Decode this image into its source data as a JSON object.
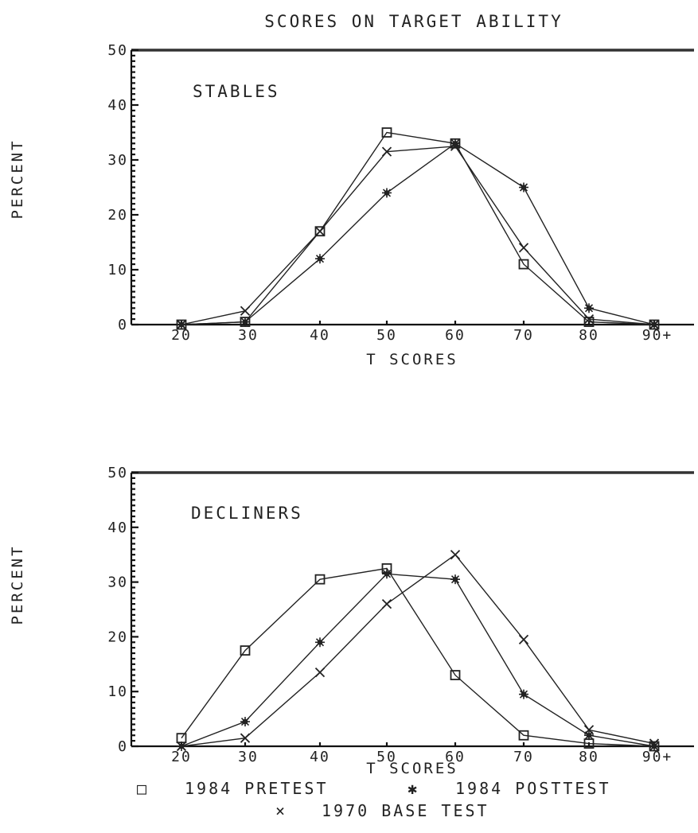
{
  "chart_data": [
    {
      "type": "line",
      "title": "SCORES ON TARGET ABILITY",
      "panel_label": "STABLES",
      "xlabel": "T SCORES",
      "ylabel": "PERCENT",
      "categories": [
        "20",
        "30",
        "40",
        "50",
        "60",
        "70",
        "80",
        "90+"
      ],
      "ylim": [
        0,
        50
      ],
      "yticks": [
        "0",
        "10",
        "20",
        "30",
        "40",
        "50"
      ],
      "series": [
        {
          "name": "1984 PRETEST",
          "marker": "square",
          "values": [
            0,
            0.5,
            17,
            35,
            33,
            11,
            0.5,
            0
          ]
        },
        {
          "name": "1984 POSTTEST",
          "marker": "star",
          "values": [
            0,
            0.5,
            12,
            24,
            33,
            25,
            3,
            0
          ]
        },
        {
          "name": "1970 BASE TEST",
          "marker": "x",
          "values": [
            0,
            2.5,
            17,
            31.5,
            32.5,
            14,
            1,
            0
          ]
        }
      ]
    },
    {
      "type": "line",
      "panel_label": "DECLINERS",
      "xlabel": "T SCORES",
      "ylabel": "PERCENT",
      "categories": [
        "20",
        "30",
        "40",
        "50",
        "60",
        "70",
        "80",
        "90+"
      ],
      "ylim": [
        0,
        50
      ],
      "yticks": [
        "0",
        "10",
        "20",
        "30",
        "40",
        "50"
      ],
      "series": [
        {
          "name": "1984 PRETEST",
          "marker": "square",
          "values": [
            1.5,
            17.5,
            30.5,
            32.5,
            13,
            2,
            0.5,
            0
          ]
        },
        {
          "name": "1984 POSTTEST",
          "marker": "star",
          "values": [
            0,
            4.5,
            19,
            31.5,
            30.5,
            9.5,
            2,
            0
          ]
        },
        {
          "name": "1970 BASE TEST",
          "marker": "x",
          "values": [
            0,
            1.5,
            13.5,
            26,
            35,
            19.5,
            3,
            0.5
          ]
        }
      ]
    }
  ],
  "legend": [
    {
      "symbol": "□",
      "label": "1984 PRETEST"
    },
    {
      "symbol": "✱",
      "label": "1984 POSTTEST"
    },
    {
      "symbol": "×",
      "label": "1970 BASE TEST"
    }
  ]
}
